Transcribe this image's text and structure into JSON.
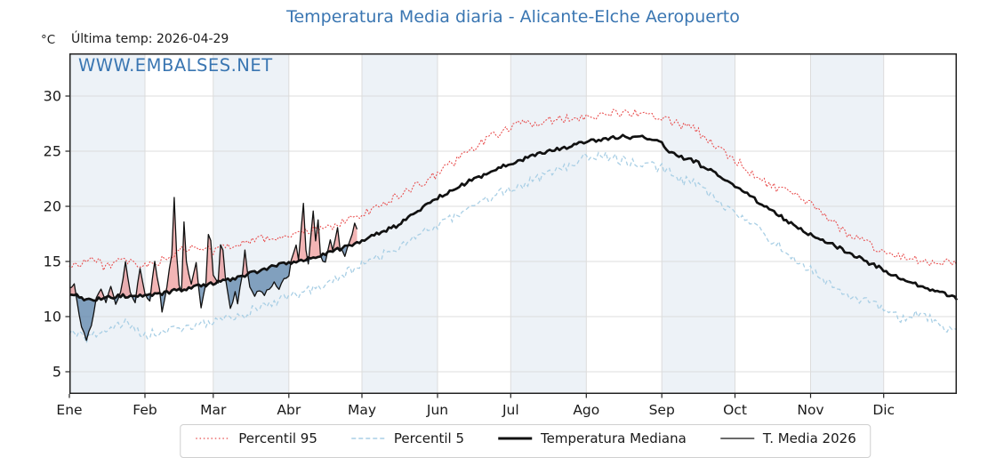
{
  "title": "Temperatura Media diaria - Alicante-Elche Aeropuerto",
  "subtitle": {
    "units": "°C",
    "last_temp": "Última temp: 2026-04-29"
  },
  "watermark": "WWW.EMBALSES.NET",
  "colors": {
    "accent_blue": "#3a76b2",
    "p95_red": "#e84c4c",
    "p5_blue": "#a9cfe5",
    "median_black": "#111111",
    "fill_above": "rgba(228,90,90,0.45)",
    "fill_below": "rgba(70,115,160,0.65)",
    "month_band": "#edf2f7",
    "grid": "#dcdcdc",
    "spine": "#222222"
  },
  "chart_data": {
    "type": "line",
    "title": "Temperatura Media diaria - Alicante-Elche Aeropuerto",
    "xlabel": "",
    "ylabel": "°C",
    "x_axis": {
      "tick_labels": [
        "Ene",
        "Feb",
        "Mar",
        "Abr",
        "May",
        "Jun",
        "Jul",
        "Ago",
        "Sep",
        "Oct",
        "Nov",
        "Dic"
      ],
      "month_start_days": [
        0,
        31,
        59,
        90,
        120,
        151,
        181,
        212,
        243,
        273,
        304,
        334
      ],
      "days_in_year": 365,
      "shaded_months": [
        0,
        2,
        4,
        6,
        8,
        10
      ]
    },
    "y_axis": {
      "min": 2.98,
      "max": 33.87,
      "ticks": [
        5,
        10,
        15,
        20,
        25,
        30
      ],
      "grid": true
    },
    "legend_position": "bottom-center",
    "series": [
      {
        "name": "Percentil 95",
        "key": "p95",
        "style": "dotted",
        "width": 1.1,
        "color": "#e84c4c",
        "jitter": 0.4,
        "seed": 3,
        "anchors": [
          [
            0,
            14.5
          ],
          [
            9,
            15.3
          ],
          [
            14,
            14.6
          ],
          [
            22,
            15.0
          ],
          [
            31,
            14.5
          ],
          [
            40,
            15.3
          ],
          [
            48,
            16.2
          ],
          [
            59,
            16.0
          ],
          [
            73,
            16.9
          ],
          [
            90,
            17.3
          ],
          [
            104,
            17.9
          ],
          [
            120,
            19.2
          ],
          [
            134,
            20.9
          ],
          [
            151,
            22.9
          ],
          [
            165,
            25.2
          ],
          [
            172,
            26.1
          ],
          [
            181,
            27.3
          ],
          [
            195,
            27.7
          ],
          [
            212,
            28.2
          ],
          [
            226,
            28.5
          ],
          [
            240,
            28.3
          ],
          [
            257,
            26.9
          ],
          [
            273,
            24.2
          ],
          [
            285,
            22.2
          ],
          [
            304,
            20.2
          ],
          [
            318,
            17.7
          ],
          [
            334,
            15.9
          ],
          [
            348,
            15.1
          ],
          [
            364,
            14.8
          ]
        ]
      },
      {
        "name": "Percentil 5",
        "key": "p5",
        "style": "dashed",
        "width": 1.3,
        "color": "#a9cfe5",
        "jitter": 0.45,
        "seed": 7,
        "anchors": [
          [
            0,
            8.6
          ],
          [
            7,
            7.9
          ],
          [
            14,
            8.8
          ],
          [
            24,
            9.4
          ],
          [
            31,
            8.3
          ],
          [
            45,
            8.9
          ],
          [
            59,
            9.5
          ],
          [
            73,
            10.3
          ],
          [
            81,
            11.2
          ],
          [
            90,
            11.7
          ],
          [
            104,
            12.8
          ],
          [
            120,
            14.7
          ],
          [
            134,
            16.2
          ],
          [
            151,
            18.3
          ],
          [
            165,
            19.9
          ],
          [
            181,
            21.6
          ],
          [
            195,
            22.7
          ],
          [
            212,
            24.5
          ],
          [
            219,
            24.7
          ],
          [
            226,
            24.2
          ],
          [
            244,
            23.4
          ],
          [
            251,
            22.4
          ],
          [
            257,
            22.0
          ],
          [
            273,
            19.3
          ],
          [
            285,
            17.5
          ],
          [
            304,
            14.2
          ],
          [
            318,
            11.8
          ],
          [
            325,
            11.5
          ],
          [
            334,
            10.8
          ],
          [
            341,
            9.9
          ],
          [
            348,
            10.3
          ],
          [
            356,
            9.5
          ],
          [
            364,
            8.5
          ]
        ]
      },
      {
        "name": "Temperatura Mediana",
        "key": "median",
        "style": "solid",
        "width": 2.7,
        "color": "#111111",
        "jitter": 0.18,
        "seed": 11,
        "anchors": [
          [
            0,
            12.1
          ],
          [
            8,
            11.5
          ],
          [
            15,
            11.7
          ],
          [
            22,
            11.9
          ],
          [
            31,
            11.8
          ],
          [
            45,
            12.4
          ],
          [
            59,
            13.0
          ],
          [
            73,
            13.8
          ],
          [
            81,
            14.4
          ],
          [
            90,
            14.9
          ],
          [
            104,
            15.6
          ],
          [
            120,
            16.9
          ],
          [
            134,
            18.2
          ],
          [
            151,
            20.8
          ],
          [
            165,
            22.4
          ],
          [
            181,
            23.9
          ],
          [
            195,
            24.9
          ],
          [
            212,
            25.8
          ],
          [
            226,
            26.35
          ],
          [
            238,
            26.2
          ],
          [
            242,
            26.0
          ],
          [
            246,
            24.9
          ],
          [
            257,
            24.0
          ],
          [
            273,
            21.9
          ],
          [
            285,
            20.0
          ],
          [
            304,
            17.4
          ],
          [
            318,
            16.0
          ],
          [
            334,
            14.2
          ],
          [
            348,
            12.9
          ],
          [
            364,
            11.6
          ]
        ]
      },
      {
        "name": "T. Media 2026",
        "key": "t2026",
        "style": "solid",
        "width": 1.3,
        "color": "#111111",
        "jitter": 0.15,
        "seed": 19,
        "end_day": 118,
        "fill_above_color": "rgba(228,90,90,0.45)",
        "fill_below_color": "rgba(70,115,160,0.65)",
        "points": [
          [
            0,
            12.6
          ],
          [
            2,
            13.0
          ],
          [
            3,
            11.5
          ],
          [
            5,
            9.0
          ],
          [
            7,
            7.9
          ],
          [
            9,
            9.2
          ],
          [
            11,
            11.6
          ],
          [
            13,
            12.4
          ],
          [
            15,
            11.3
          ],
          [
            17,
            12.7
          ],
          [
            19,
            11.2
          ],
          [
            21,
            12.1
          ],
          [
            23,
            14.9
          ],
          [
            25,
            12.1
          ],
          [
            27,
            11.4
          ],
          [
            29,
            14.5
          ],
          [
            31,
            12.1
          ],
          [
            33,
            11.5
          ],
          [
            35,
            14.9
          ],
          [
            37,
            12.4
          ],
          [
            38,
            10.4
          ],
          [
            40,
            12.8
          ],
          [
            42,
            15.6
          ],
          [
            43,
            20.7
          ],
          [
            44,
            15.8
          ],
          [
            45,
            12.9
          ],
          [
            46,
            12.4
          ],
          [
            47,
            18.6
          ],
          [
            48,
            14.9
          ],
          [
            50,
            13.0
          ],
          [
            52,
            14.8
          ],
          [
            54,
            10.8
          ],
          [
            56,
            12.9
          ],
          [
            57,
            17.4
          ],
          [
            58,
            16.8
          ],
          [
            59,
            13.8
          ],
          [
            61,
            13.1
          ],
          [
            62,
            16.6
          ],
          [
            63,
            16.0
          ],
          [
            64,
            13.4
          ],
          [
            66,
            10.6
          ],
          [
            68,
            12.3
          ],
          [
            69,
            11.3
          ],
          [
            71,
            13.9
          ],
          [
            72,
            15.9
          ],
          [
            74,
            12.6
          ],
          [
            76,
            11.9
          ],
          [
            78,
            12.4
          ],
          [
            80,
            12.0
          ],
          [
            82,
            12.6
          ],
          [
            84,
            13.1
          ],
          [
            86,
            12.5
          ],
          [
            88,
            13.4
          ],
          [
            90,
            13.7
          ],
          [
            91,
            15.0
          ],
          [
            93,
            16.4
          ],
          [
            94,
            15.0
          ],
          [
            96,
            20.3
          ],
          [
            97,
            16.1
          ],
          [
            98,
            14.7
          ],
          [
            100,
            19.6
          ],
          [
            101,
            16.9
          ],
          [
            102,
            18.7
          ],
          [
            103,
            15.4
          ],
          [
            105,
            14.8
          ],
          [
            107,
            17.1
          ],
          [
            108,
            15.9
          ],
          [
            110,
            18.2
          ],
          [
            111,
            16.3
          ],
          [
            113,
            15.6
          ],
          [
            115,
            16.7
          ],
          [
            117,
            18.4
          ],
          [
            118,
            17.9
          ]
        ]
      }
    ],
    "legend": [
      "Percentil 95",
      "Percentil 5",
      "Temperatura Mediana",
      "T. Media 2026"
    ]
  }
}
